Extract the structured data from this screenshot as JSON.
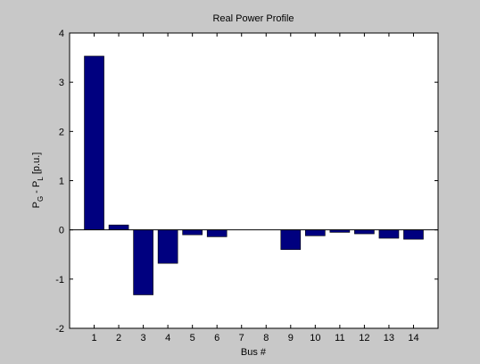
{
  "chart_data": {
    "type": "bar",
    "title": "Real Power Profile",
    "xlabel": "Bus #",
    "ylabel": {
      "main": "P",
      "sub1": "G",
      "mid": " - P",
      "sub2": "L",
      "unit": " [p.u.]"
    },
    "categories": [
      "1",
      "2",
      "3",
      "4",
      "5",
      "6",
      "7",
      "8",
      "9",
      "10",
      "11",
      "12",
      "13",
      "14"
    ],
    "values": [
      3.53,
      0.1,
      -1.32,
      -0.68,
      -0.1,
      -0.14,
      0.0,
      0.0,
      -0.4,
      -0.12,
      -0.05,
      -0.08,
      -0.17,
      -0.19
    ],
    "ylim": [
      -2,
      4
    ],
    "yticks": [
      "-2",
      "-1",
      "0",
      "1",
      "2",
      "3",
      "4"
    ],
    "grid": false,
    "bar_color": "#00007f",
    "zero_line": true
  }
}
